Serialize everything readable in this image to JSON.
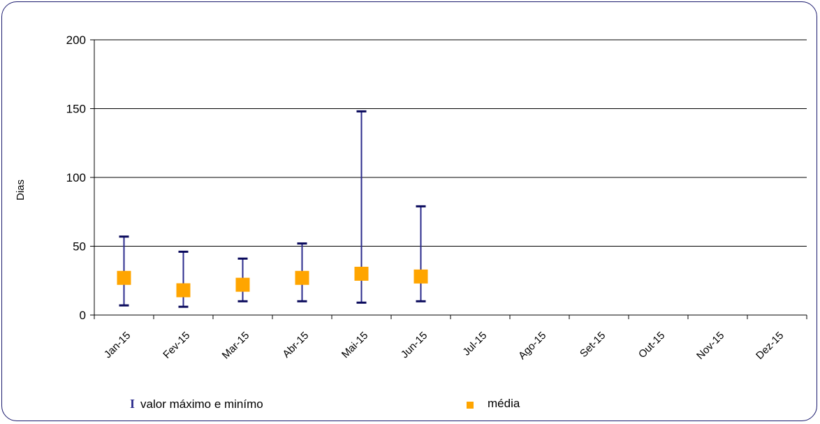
{
  "colors": {
    "error_bar": "#2b2b8c",
    "error_cap": "#0a0a5c",
    "mean_marker": "#ffa500",
    "grid": "#000000",
    "frame": "#1a1a6e"
  },
  "chart_data": {
    "type": "scatter",
    "title": "",
    "xlabel": "",
    "ylabel": "Dias",
    "ylim": [
      0,
      200
    ],
    "yticks": [
      0,
      50,
      100,
      150,
      200
    ],
    "grid": true,
    "legend_placement": "bottom",
    "categories": [
      "Jan-15",
      "Fev-15",
      "Mar-15",
      "Abr-15",
      "Mai-15",
      "Jun-15",
      "Jul-15",
      "Ago-15",
      "Set-15",
      "Out-15",
      "Nov-15",
      "Dez-15"
    ],
    "series": [
      {
        "name": "valor máximo e minímo",
        "kind": "range",
        "max": [
          57,
          46,
          41,
          52,
          148,
          79,
          null,
          null,
          null,
          null,
          null,
          null
        ],
        "min": [
          7,
          6,
          10,
          10,
          9,
          10,
          null,
          null,
          null,
          null,
          null,
          null
        ]
      },
      {
        "name": "média",
        "kind": "point",
        "values": [
          27,
          18,
          22,
          27,
          30,
          28,
          null,
          null,
          null,
          null,
          null,
          null
        ]
      }
    ]
  },
  "legend": {
    "range_glyph": "I",
    "range_label": "valor máximo e minímo",
    "mean_label": "média"
  }
}
